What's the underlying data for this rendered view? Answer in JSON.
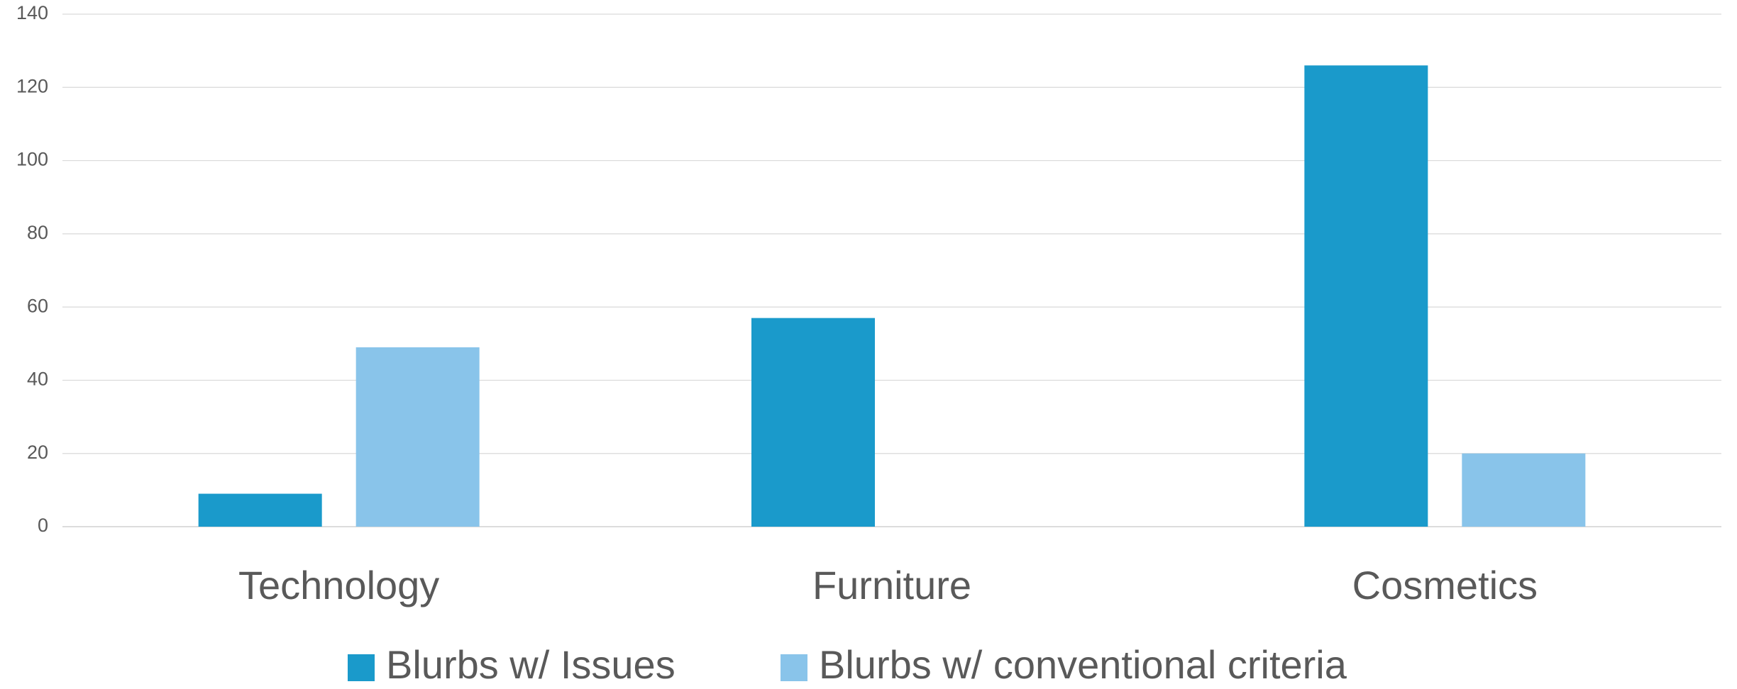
{
  "chart_data": {
    "type": "bar",
    "title": "",
    "xlabel": "",
    "ylabel": "",
    "categories": [
      "Technology",
      "Furniture",
      "Cosmetics"
    ],
    "series": [
      {
        "name": "Blurbs w/ Issues",
        "values": [
          9,
          57,
          126
        ],
        "color": "#1A9ACB"
      },
      {
        "name": "Blurbs w/ conventional criteria",
        "values": [
          49,
          0,
          20
        ],
        "color": "#89C4EA"
      }
    ],
    "ylim": [
      0,
      140
    ],
    "yticks": [
      0,
      20,
      40,
      60,
      80,
      100,
      120,
      140
    ],
    "grid": true,
    "legend_position": "bottom"
  }
}
